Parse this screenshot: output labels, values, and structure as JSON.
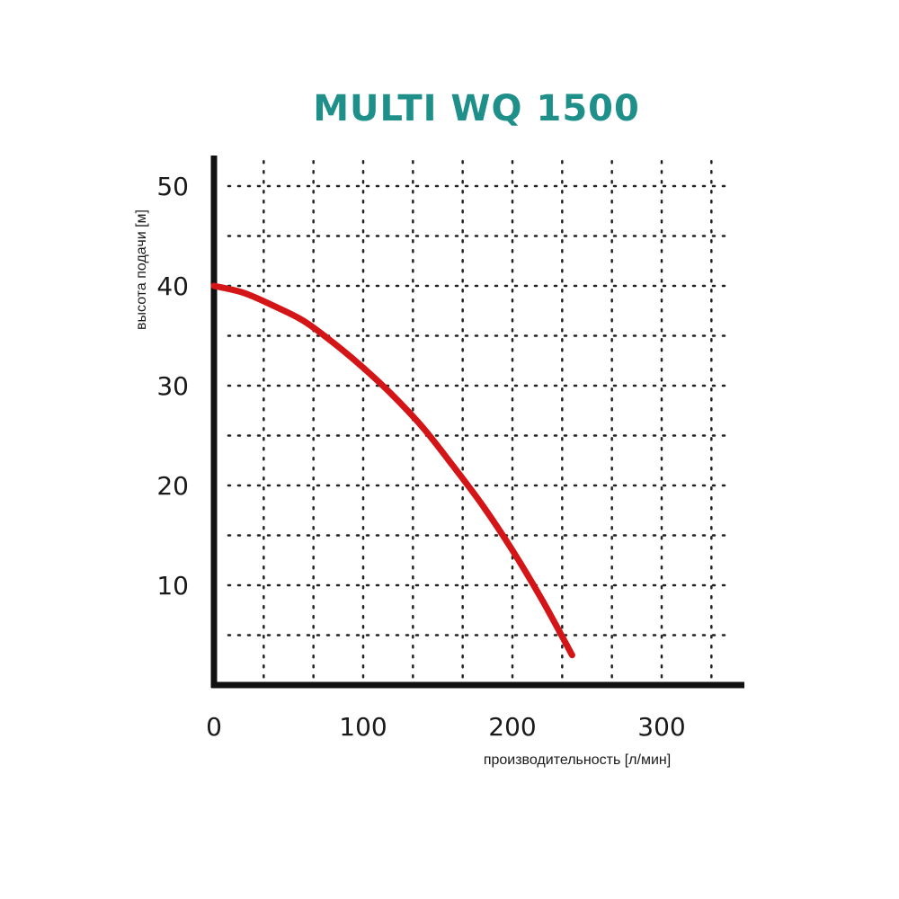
{
  "chart_data": {
    "type": "line",
    "title": "MULTI WQ 1500",
    "xlabel": "производительность [л/мин]",
    "ylabel": "высота подачи [м]",
    "xlim": [
      0,
      350
    ],
    "ylim": [
      0,
      50
    ],
    "xticks": [
      0,
      100,
      200,
      300
    ],
    "yticks": [
      10,
      20,
      30,
      40,
      50
    ],
    "grid": true,
    "colors": {
      "curve": "#d41518",
      "title": "#1f8f8a",
      "axis": "#111111",
      "grid": "#222222"
    },
    "series": [
      {
        "x": [
          0,
          20,
          40,
          60,
          80,
          100,
          120,
          140,
          160,
          180,
          200,
          220,
          240
        ],
        "values": [
          40,
          39.3,
          38,
          36.5,
          34.3,
          31.8,
          29,
          25.8,
          22,
          18,
          13.5,
          8.5,
          3
        ]
      }
    ]
  }
}
